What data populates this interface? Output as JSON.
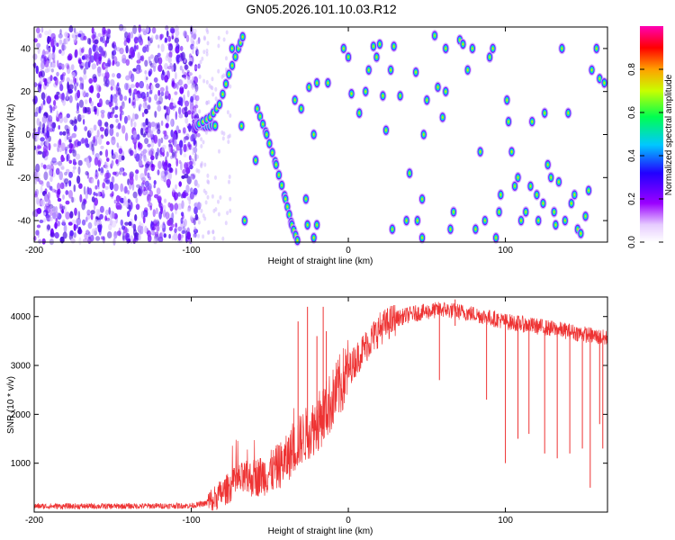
{
  "title": "GN05.2026.101.10.03.R12",
  "chart_data": [
    {
      "type": "heatmap",
      "title": "",
      "xlabel": "Height of straight line (km)",
      "ylabel": "Frequency (Hz)",
      "xlim": [
        -200,
        165
      ],
      "ylim": [
        -50,
        50
      ],
      "x_ticks": [
        -200,
        -100,
        0,
        100
      ],
      "y_ticks": [
        -40,
        -20,
        0,
        20,
        40
      ],
      "colorbar": {
        "label": "Normalized spectral amplitude",
        "range": [
          0,
          1
        ],
        "ticks": [
          0.0,
          0.2,
          0.4,
          0.6,
          0.8
        ],
        "tick_labels": [
          "0.0",
          "0.2",
          "0.4",
          "0.6",
          "0.8"
        ],
        "colors": [
          "#ffffff",
          "#9b00ff",
          "#2200ff",
          "#00c8ff",
          "#00ff50",
          "#c8ff00",
          "#ffa000",
          "#ff0000",
          "#ff00b4"
        ]
      },
      "description_regions": {
        "noise_band_x": [
          -200,
          -95
        ],
        "signal_track": [
          [
            -95,
            5
          ],
          [
            -88,
            8
          ],
          [
            -82,
            14
          ],
          [
            -76,
            28
          ],
          [
            -70,
            40
          ],
          [
            -66,
            48
          ]
        ],
        "descending_track": [
          [
            -58,
            12
          ],
          [
            -52,
            0
          ],
          [
            -46,
            -14
          ],
          [
            -40,
            -30
          ],
          [
            -36,
            -42
          ],
          [
            -32,
            -50
          ]
        ]
      }
    },
    {
      "type": "line",
      "title": "",
      "xlabel": "Height of straight line (km)",
      "ylabel": "SNR (10 * v/v)",
      "xlim": [
        -200,
        165
      ],
      "ylim": [
        0,
        4400
      ],
      "x_ticks": [
        -200,
        -100,
        0,
        100
      ],
      "y_ticks": [
        1000,
        2000,
        3000,
        4000
      ],
      "series": [
        {
          "name": "SNR",
          "color": "#ee3333",
          "envelope": [
            {
              "x": -200,
              "y": 120
            },
            {
              "x": -150,
              "y": 120
            },
            {
              "x": -100,
              "y": 130
            },
            {
              "x": -90,
              "y": 180
            },
            {
              "x": -80,
              "y": 400
            },
            {
              "x": -70,
              "y": 650
            },
            {
              "x": -60,
              "y": 700
            },
            {
              "x": -50,
              "y": 800
            },
            {
              "x": -40,
              "y": 1050
            },
            {
              "x": -30,
              "y": 1500
            },
            {
              "x": -20,
              "y": 1800
            },
            {
              "x": -10,
              "y": 2300
            },
            {
              "x": 0,
              "y": 2900
            },
            {
              "x": 10,
              "y": 3350
            },
            {
              "x": 20,
              "y": 3750
            },
            {
              "x": 30,
              "y": 3950
            },
            {
              "x": 40,
              "y": 4050
            },
            {
              "x": 60,
              "y": 4150
            },
            {
              "x": 80,
              "y": 4050
            },
            {
              "x": 100,
              "y": 3900
            },
            {
              "x": 120,
              "y": 3800
            },
            {
              "x": 140,
              "y": 3700
            },
            {
              "x": 165,
              "y": 3550
            }
          ],
          "dips": [
            {
              "x": 58,
              "y": 2700
            },
            {
              "x": 88,
              "y": 2300
            },
            {
              "x": 100,
              "y": 1000
            },
            {
              "x": 108,
              "y": 1500
            },
            {
              "x": 115,
              "y": 1600
            },
            {
              "x": 125,
              "y": 1200
            },
            {
              "x": 133,
              "y": 1100
            },
            {
              "x": 141,
              "y": 1200
            },
            {
              "x": 149,
              "y": 1300
            },
            {
              "x": 154,
              "y": 500
            },
            {
              "x": 160,
              "y": 1800
            },
            {
              "x": 162,
              "y": 1300
            }
          ],
          "spikes": [
            {
              "x": -32,
              "y": 3900
            },
            {
              "x": -26,
              "y": 4200
            },
            {
              "x": -20,
              "y": 3600
            },
            {
              "x": -16,
              "y": 4200
            },
            {
              "x": -14,
              "y": 3700
            },
            {
              "x": 68,
              "y": 4350
            }
          ]
        }
      ]
    }
  ]
}
